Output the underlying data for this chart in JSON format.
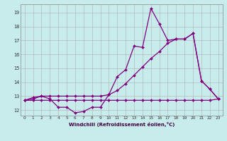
{
  "title": "",
  "xlabel": "Windchill (Refroidissement éolien,°C)",
  "background_color": "#c8ecec",
  "line_color": "#800080",
  "grid_color": "#b0b0b0",
  "x": [
    0,
    1,
    2,
    3,
    4,
    5,
    6,
    7,
    8,
    9,
    10,
    11,
    12,
    13,
    14,
    15,
    16,
    17,
    18,
    19,
    20,
    21,
    22,
    23
  ],
  "series1": [
    12.7,
    12.8,
    13.0,
    12.8,
    12.2,
    12.2,
    11.8,
    11.9,
    12.2,
    12.2,
    13.1,
    14.4,
    14.9,
    16.6,
    16.5,
    19.3,
    18.2,
    17.0,
    17.1,
    17.1,
    17.5,
    14.1,
    13.5,
    12.8
  ],
  "series2": [
    12.7,
    12.7,
    12.7,
    12.7,
    12.7,
    12.7,
    12.7,
    12.7,
    12.7,
    12.7,
    12.7,
    12.7,
    12.7,
    12.7,
    12.7,
    12.7,
    12.7,
    12.7,
    12.7,
    12.7,
    12.7,
    12.7,
    12.7,
    12.8
  ],
  "series3": [
    12.7,
    12.9,
    13.0,
    13.0,
    13.0,
    13.0,
    13.0,
    13.0,
    13.0,
    13.0,
    13.1,
    13.4,
    13.9,
    14.5,
    15.1,
    15.7,
    16.2,
    16.8,
    17.1,
    17.1,
    17.5,
    14.1,
    13.5,
    12.8
  ],
  "ylim": [
    11.6,
    19.6
  ],
  "yticks": [
    12,
    13,
    14,
    15,
    16,
    17,
    18,
    19
  ],
  "xticks": [
    0,
    1,
    2,
    3,
    4,
    5,
    6,
    7,
    8,
    9,
    10,
    11,
    12,
    13,
    14,
    15,
    16,
    17,
    18,
    19,
    20,
    21,
    22,
    23
  ]
}
